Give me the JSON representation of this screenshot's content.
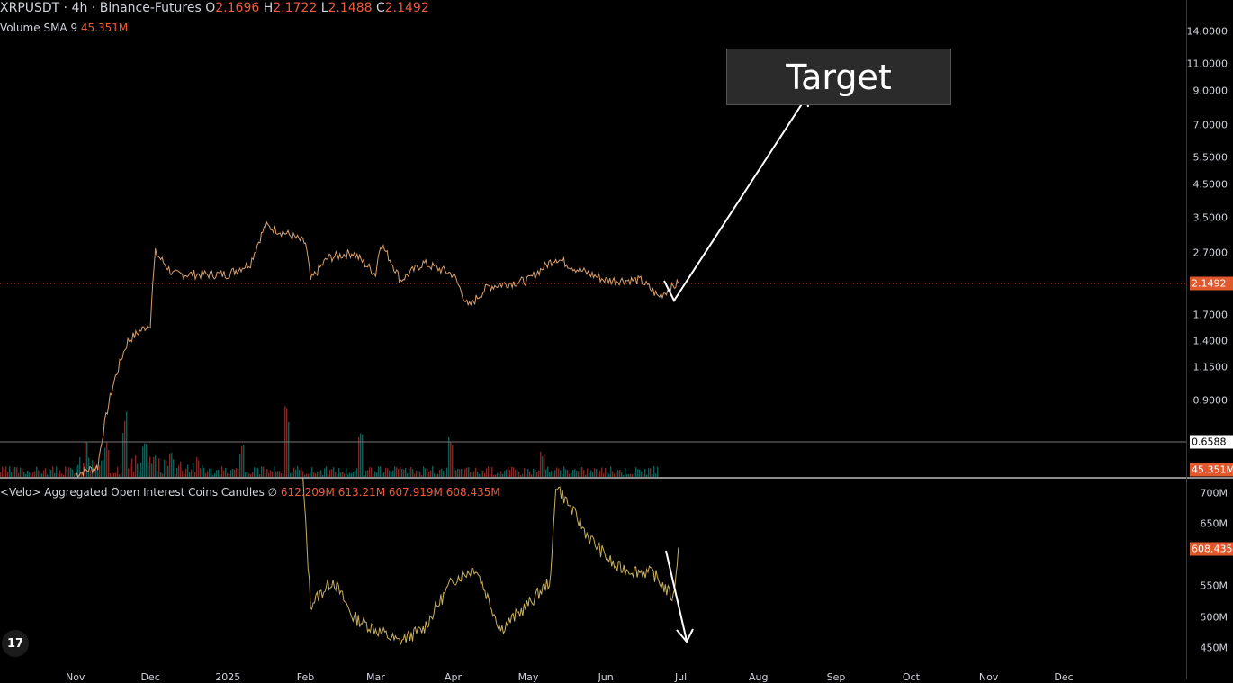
{
  "header": {
    "symbol": "XRPUSDT · 4h · Binance-Futures",
    "o_label": "O",
    "o_value": "2.1696",
    "h_label": "H",
    "h_value": "2.1722",
    "l_label": "L",
    "l_value": "2.1488",
    "c_label": "C",
    "c_value": "2.1492"
  },
  "volume_legend": {
    "label": "Volume SMA 9",
    "value": "45.351M"
  },
  "oi_legend": {
    "label": "<Velo> Aggregated Open Interest Coins Candles ∅",
    "v1": "612.209M",
    "v2": "613.21M",
    "v3": "607.919M",
    "v4": "608.435M"
  },
  "annotation": {
    "target_label": "Target"
  },
  "price_axis": {
    "ticks": [
      "14.0000",
      "11.0000",
      "9.0000",
      "7.0000",
      "5.5000",
      "4.5000",
      "3.5000",
      "2.7000",
      "1.7000",
      "1.4000",
      "1.1500",
      "0.9000"
    ],
    "badges": {
      "last_price": "2.1492",
      "cursor_price": "0.6588",
      "volume_sma": "45.351M"
    }
  },
  "oi_axis": {
    "ticks": [
      "700M",
      "650M",
      "550M",
      "500M",
      "450M"
    ],
    "badge": "608.435M"
  },
  "x_axis": {
    "labels": [
      "Nov",
      "Dec",
      "2025",
      "Feb",
      "Mar",
      "Apr",
      "May",
      "Jun",
      "Jul",
      "Aug",
      "Sep",
      "Oct",
      "Nov",
      "Dec"
    ]
  },
  "colors": {
    "up": "#26a69a",
    "down": "#ef5350",
    "accent": "#e0582c",
    "price_line": "#d8a070"
  },
  "chart_data": [
    {
      "type": "line",
      "series_label": "XRPUSDT price (4h)",
      "x": [
        "2024-11-01",
        "2024-11-10",
        "2024-11-16",
        "2024-11-22",
        "2024-12-01",
        "2024-12-03",
        "2024-12-10",
        "2024-12-20",
        "2025-01-01",
        "2025-01-10",
        "2025-01-16",
        "2025-01-25",
        "2025-02-01",
        "2025-02-03",
        "2025-02-10",
        "2025-02-20",
        "2025-03-01",
        "2025-03-03",
        "2025-03-11",
        "2025-03-20",
        "2025-04-01",
        "2025-04-07",
        "2025-04-15",
        "2025-05-01",
        "2025-05-12",
        "2025-05-20",
        "2025-06-01",
        "2025-06-15",
        "2025-06-22",
        "2025-06-30"
      ],
      "y": [
        0.52,
        0.55,
        1.0,
        1.4,
        1.6,
        2.7,
        2.3,
        2.3,
        2.3,
        2.5,
        3.3,
        3.1,
        2.9,
        2.2,
        2.6,
        2.7,
        2.3,
        2.9,
        2.2,
        2.5,
        2.3,
        1.8,
        2.1,
        2.2,
        2.6,
        2.4,
        2.2,
        2.2,
        1.95,
        2.15
      ],
      "projection": {
        "x": [
          "2025-06-30",
          "2025-07-02",
          "2025-08-15"
        ],
        "y": [
          2.15,
          1.9,
          9.0
        ]
      },
      "yscale": "log",
      "ylim": [
        0.55,
        16.0
      ]
    },
    {
      "type": "bar",
      "series_label": "Volume",
      "note": "spikes around late Nov 2024, mid Jan, early Feb, early Mar and early Apr 2025"
    },
    {
      "type": "line",
      "series_label": "Aggregated Open Interest (coins)",
      "x": [
        "2025-01-31",
        "2025-02-03",
        "2025-02-12",
        "2025-02-20",
        "2025-03-01",
        "2025-03-10",
        "2025-03-20",
        "2025-04-01",
        "2025-04-10",
        "2025-04-20",
        "2025-05-01",
        "2025-05-10",
        "2025-05-12",
        "2025-05-25",
        "2025-06-05",
        "2025-06-20",
        "2025-06-28",
        "2025-06-30"
      ],
      "y": [
        720,
        520,
        560,
        500,
        480,
        460,
        480,
        560,
        580,
        480,
        520,
        560,
        715,
        630,
        580,
        570,
        530,
        612
      ],
      "projection": {
        "x": [
          "2025-06-30",
          "2025-07-02"
        ],
        "y": [
          612,
          440
        ]
      },
      "ylim": [
        430,
        725
      ]
    }
  ]
}
